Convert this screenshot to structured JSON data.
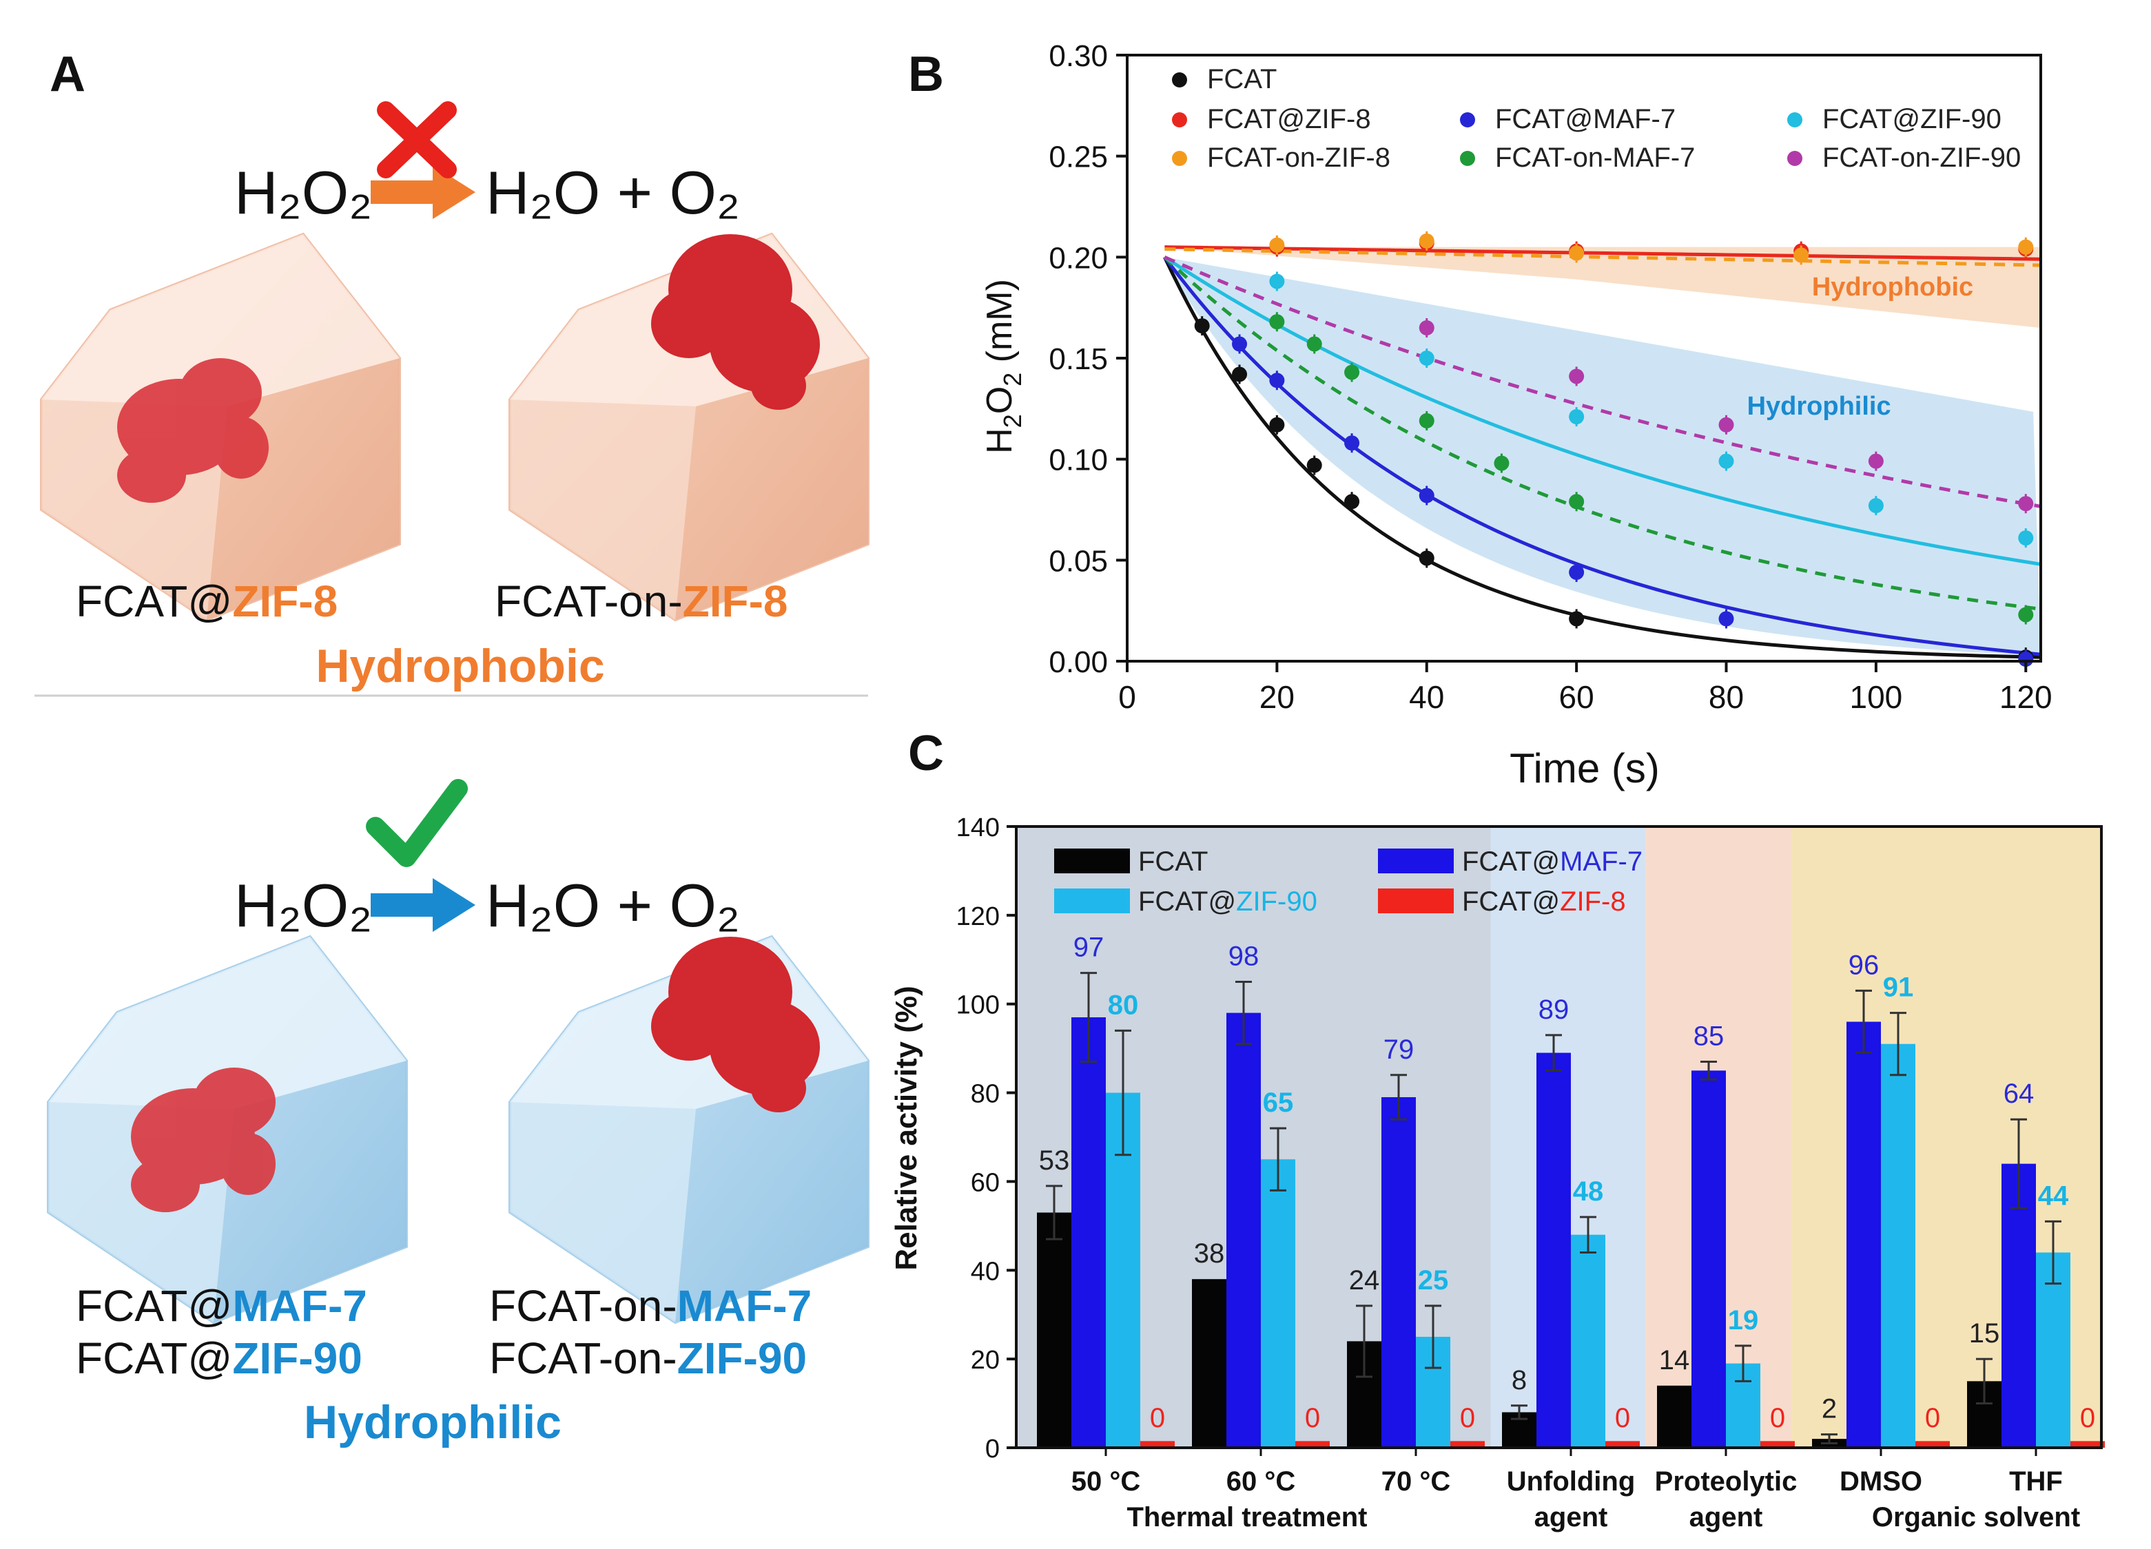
{
  "panelA": {
    "letter": "A",
    "top": {
      "reactant": "H₂O₂",
      "product": "H₂O + O₂",
      "status": "blocked",
      "left_caption_prefix": "FCAT@",
      "left_caption_mof": "ZIF-8",
      "right_caption_prefix": "FCAT-on-",
      "right_caption_mof": "ZIF-8",
      "class_label": "Hydrophobic"
    },
    "bottom": {
      "reactant": "H₂O₂",
      "product": "H₂O + O₂",
      "status": "allowed",
      "left_caption1_prefix": "FCAT@",
      "left_caption1_mof": "MAF-7",
      "left_caption2_prefix": "FCAT@",
      "left_caption2_mof": "ZIF-90",
      "right_caption1_prefix": "FCAT-on-",
      "right_caption1_mof": "MAF-7",
      "right_caption2_prefix": "FCAT-on-",
      "right_caption2_mof": "ZIF-90",
      "class_label": "Hydrophilic"
    },
    "colors": {
      "hydrophobic": "#f07d2f",
      "hydrophilic": "#1a8ad0",
      "cross": "#e8221c",
      "check": "#1fa84a",
      "enzyme": "#d9363e"
    }
  },
  "chart_data": [
    {
      "panel": "B",
      "type": "scatter",
      "xlabel": "Time (s)",
      "ylabel": "H2O2 (mM)",
      "xlim": [
        0,
        122
      ],
      "ylim": [
        0,
        0.3
      ],
      "xticks": [
        "0",
        "20",
        "40",
        "60",
        "80",
        "100",
        "120"
      ],
      "yticks": [
        "0.00",
        "0.05",
        "0.10",
        "0.15",
        "0.20",
        "0.25",
        "0.30"
      ],
      "legend_placement": "top",
      "annotations": [
        "Hydrophobic",
        "Hydrophilic"
      ],
      "series": [
        {
          "name": "FCAT",
          "color": "#111111",
          "fit": "solid",
          "points": [
            [
              10,
              0.166
            ],
            [
              15,
              0.142
            ],
            [
              20,
              0.117
            ],
            [
              25,
              0.097
            ],
            [
              30,
              0.079
            ],
            [
              40,
              0.051
            ],
            [
              60,
              0.021
            ],
            [
              120,
              0.002
            ]
          ]
        },
        {
          "name": "FCAT@ZIF-8",
          "color": "#e8281e",
          "fit": "solid",
          "points": [
            [
              20,
              0.205
            ],
            [
              40,
              0.207
            ],
            [
              60,
              0.203
            ],
            [
              90,
              0.203
            ],
            [
              120,
              0.204
            ]
          ]
        },
        {
          "name": "FCAT-on-ZIF-8",
          "color": "#f39a1c",
          "fit": "dashed",
          "points": [
            [
              20,
              0.206
            ],
            [
              40,
              0.208
            ],
            [
              60,
              0.202
            ],
            [
              90,
              0.201
            ],
            [
              120,
              0.205
            ]
          ]
        },
        {
          "name": "FCAT@MAF-7",
          "color": "#2626d6",
          "fit": "solid",
          "points": [
            [
              15,
              0.157
            ],
            [
              20,
              0.139
            ],
            [
              30,
              0.108
            ],
            [
              40,
              0.082
            ],
            [
              60,
              0.044
            ],
            [
              80,
              0.021
            ],
            [
              120,
              0.001
            ]
          ]
        },
        {
          "name": "FCAT-on-MAF-7",
          "color": "#1f9a38",
          "fit": "dashed",
          "points": [
            [
              20,
              0.168
            ],
            [
              25,
              0.157
            ],
            [
              30,
              0.143
            ],
            [
              40,
              0.119
            ],
            [
              50,
              0.098
            ],
            [
              60,
              0.079
            ],
            [
              120,
              0.023
            ]
          ]
        },
        {
          "name": "FCAT@ZIF-90",
          "color": "#22bde0",
          "fit": "solid",
          "points": [
            [
              20,
              0.188
            ],
            [
              40,
              0.15
            ],
            [
              60,
              0.121
            ],
            [
              80,
              0.099
            ],
            [
              100,
              0.077
            ],
            [
              120,
              0.061
            ]
          ]
        },
        {
          "name": "FCAT-on-ZIF-90",
          "color": "#b13aa8",
          "fit": "dashed",
          "points": [
            [
              40,
              0.165
            ],
            [
              60,
              0.141
            ],
            [
              80,
              0.117
            ],
            [
              100,
              0.099
            ],
            [
              120,
              0.078
            ]
          ]
        }
      ]
    },
    {
      "panel": "C",
      "type": "bar",
      "ylabel": "Relative activity (%)",
      "ylim": [
        0,
        140
      ],
      "yticks": [
        "0",
        "20",
        "40",
        "60",
        "80",
        "100",
        "120",
        "140"
      ],
      "categories": [
        "50 °C",
        "60 °C",
        "70 °C",
        "Unfolding agent",
        "Proteolytic agent",
        "DMSO",
        "THF"
      ],
      "group_labels": [
        "Thermal treatment",
        "Organic solvent"
      ],
      "legend_placement": "top",
      "series": [
        {
          "name": "FCAT",
          "color": "#050505",
          "label_color": "#222222",
          "values": [
            53,
            38,
            24,
            8,
            14,
            2,
            15
          ],
          "errors": [
            6,
            0,
            8,
            1.5,
            0,
            1,
            5
          ]
        },
        {
          "name": "FCAT@MAF-7",
          "color": "#1a12e6",
          "label_color": "#2a2ad8",
          "values": [
            97,
            98,
            79,
            89,
            85,
            96,
            64
          ],
          "errors": [
            10,
            7,
            5,
            4,
            2,
            7,
            10
          ]
        },
        {
          "name": "FCAT@ZIF-90",
          "color": "#20b8ec",
          "label_color": "#18b4e6",
          "values": [
            80,
            65,
            25,
            48,
            19,
            91,
            44
          ],
          "errors": [
            14,
            7,
            7,
            4,
            4,
            7,
            7
          ]
        },
        {
          "name": "FCAT@ZIF-8",
          "color": "#f0241c",
          "label_color": "#f0241c",
          "values": [
            0,
            0,
            0,
            0,
            0,
            0,
            0
          ],
          "errors": [
            0,
            0,
            0,
            0,
            0,
            0,
            0
          ]
        }
      ],
      "legend_name_parts": [
        {
          "prefix": "FCAT",
          "suffix": ""
        },
        {
          "prefix": "FCAT@",
          "suffix": "MAF-7"
        },
        {
          "prefix": "FCAT@",
          "suffix": "ZIF-90"
        },
        {
          "prefix": "FCAT@",
          "suffix": "ZIF-8"
        }
      ],
      "background_regions": [
        "#ccd5e0",
        "#d4e3f3",
        "#f7dccd",
        "#f5e3b8"
      ]
    }
  ],
  "panel_letters": {
    "b": "B",
    "c": "C"
  }
}
